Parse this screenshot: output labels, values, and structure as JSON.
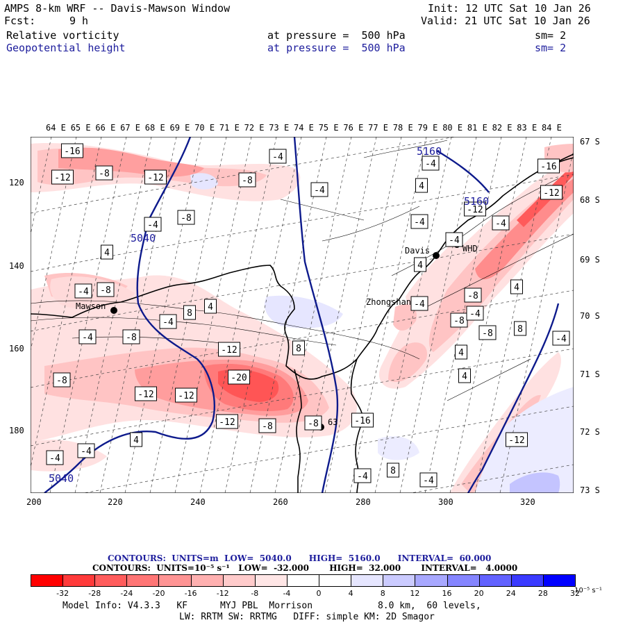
{
  "header": {
    "title": "AMPS 8-km WRF -- Davis-Mawson Window",
    "init": "Init: 12 UTC Sat 10 Jan 26",
    "fcst_label": "Fcst:",
    "fcst_value": "9 h",
    "valid": "Valid: 21 UTC Sat 10 Jan 26",
    "field1": "Relative vorticity",
    "field1_level": "at pressure =  500 hPa",
    "field1_sm": "sm= 2",
    "field2": "Geopotential height",
    "field2_level": "at pressure =  500 hPa",
    "field2_sm": "sm= 2"
  },
  "axes": {
    "top_lon": [
      "64 E",
      "65 E",
      "66 E",
      "67 E",
      "68 E",
      "69 E",
      "70 E",
      "71 E",
      "72 E",
      "73 E",
      "74 E",
      "75 E",
      "76 E",
      "77 E",
      "78 E",
      "79 E",
      "80 E",
      "81 E",
      "82 E",
      "83 E",
      "84 E"
    ],
    "right_lat": [
      "67 S",
      "68 S",
      "69 S",
      "70 S",
      "71 S",
      "72 S",
      "73 S"
    ],
    "left_y": [
      "120",
      "140",
      "160",
      "180"
    ],
    "bottom_x": [
      "200",
      "220",
      "240",
      "260",
      "280",
      "300",
      "320"
    ]
  },
  "stations": {
    "davis": "Davis",
    "mawson": "Mawson",
    "zhongshan": "Zhongshan",
    "station3": "WHD",
    "station4": "63"
  },
  "contour_labels": {
    "height_5040": "5040",
    "height_5160": "5160"
  },
  "vorticity_labels": [
    "-16",
    "-12",
    "-8",
    "-12",
    "-4",
    "-8",
    "-4",
    "-4",
    "-8",
    "4",
    "-8",
    "-4",
    "4",
    "-12",
    "-8",
    "-4",
    "8",
    "-4",
    "8",
    "-8",
    "-12",
    "-20",
    "-12",
    "-12",
    "-8",
    "-16",
    "-8",
    "-4",
    "4",
    "-4",
    "-4",
    "-4",
    "-16",
    "-12",
    "-4",
    "-12",
    "-8",
    "-8",
    "-4",
    "4",
    "-4",
    "4",
    "-4",
    "-4",
    "-8",
    "-12",
    "8",
    "4",
    "-4",
    "8",
    "4",
    "-4",
    "4"
  ],
  "contour_info": {
    "line1": "CONTOURS:  UNITS=m  LOW=  5040.0      HIGH=  5160.0      INTERVAL=  60.000",
    "line2": "CONTOURS:  UNITS=10⁻⁵ s⁻¹   LOW=  -32.000       HIGH=  32.000       INTERVAL=   4.0000"
  },
  "colorbar": {
    "ticks": [
      "-32",
      "-28",
      "-24",
      "-20",
      "-16",
      "-12",
      "-8",
      "-4",
      "0",
      "4",
      "8",
      "12",
      "16",
      "20",
      "24",
      "28",
      "32"
    ],
    "unit": "10⁻⁵ s⁻¹",
    "colors": [
      "#ff0000",
      "#ff3a3a",
      "#ff5c5c",
      "#ff7575",
      "#ff9494",
      "#ffb0b0",
      "#ffcbcb",
      "#ffe6e6",
      "#ffffff",
      "#ffffff",
      "#e6e6ff",
      "#cbcbff",
      "#a8a8ff",
      "#8585ff",
      "#6262ff",
      "#3a3aff",
      "#0000ff"
    ]
  },
  "footer": {
    "line1": "Model Info: V4.3.3   KF      MYJ PBL  Morrison            8.0 km,  60 levels,",
    "line2": "LW: RRTM SW: RRTMG   DIFF: simple KM: 2D Smagor"
  }
}
